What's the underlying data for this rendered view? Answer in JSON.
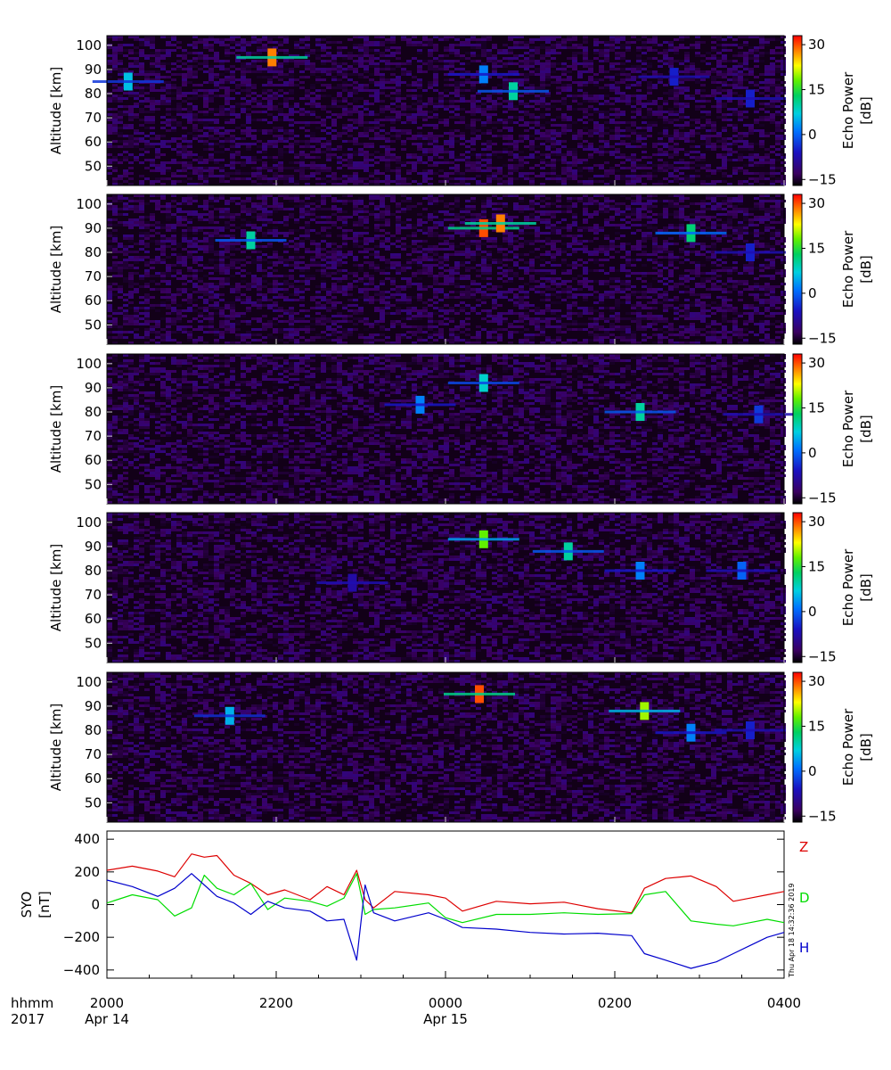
{
  "chart_data": [
    {
      "type": "heatmap",
      "panel": 1,
      "ylabel": "Altitude [km]",
      "ylim": [
        42,
        104
      ],
      "yticks": [
        "50",
        "60",
        "70",
        "80",
        "90",
        "100"
      ],
      "colorbar": {
        "label": "Echo Power\n[dB]",
        "range": [
          -17,
          33
        ],
        "ticks": [
          "30",
          "15",
          "0",
          "-15"
        ]
      },
      "features": [
        {
          "t": 0.25,
          "alt": 85,
          "db": 6
        },
        {
          "t": 1.95,
          "alt": 95,
          "db": 28
        },
        {
          "t": 4.45,
          "alt": 88,
          "db": 2
        },
        {
          "t": 4.8,
          "alt": 81,
          "db": 10
        },
        {
          "t": 6.7,
          "alt": 87,
          "db": -5
        },
        {
          "t": 7.6,
          "alt": 78,
          "db": -5
        }
      ]
    },
    {
      "type": "heatmap",
      "panel": 2,
      "ylabel": "Altitude [km]",
      "ylim": [
        42,
        104
      ],
      "yticks": [
        "50",
        "60",
        "70",
        "80",
        "90",
        "100"
      ],
      "colorbar": {
        "label": "Echo Power\n[dB]",
        "range": [
          -17,
          33
        ],
        "ticks": [
          "30",
          "15",
          "0",
          "-15"
        ]
      },
      "features": [
        {
          "t": 1.7,
          "alt": 85,
          "db": 10
        },
        {
          "t": 4.45,
          "alt": 90,
          "db": 30
        },
        {
          "t": 4.65,
          "alt": 92,
          "db": 28
        },
        {
          "t": 6.9,
          "alt": 88,
          "db": 12
        },
        {
          "t": 7.6,
          "alt": 80,
          "db": -5
        }
      ]
    },
    {
      "type": "heatmap",
      "panel": 3,
      "ylabel": "Altitude [km]",
      "ylim": [
        42,
        104
      ],
      "yticks": [
        "50",
        "60",
        "70",
        "80",
        "90",
        "100"
      ],
      "colorbar": {
        "label": "Echo Power\n[dB]",
        "range": [
          -17,
          33
        ],
        "ticks": [
          "30",
          "15",
          "0",
          "-15"
        ]
      },
      "features": [
        {
          "t": 3.7,
          "alt": 83,
          "db": 2
        },
        {
          "t": 4.45,
          "alt": 92,
          "db": 8
        },
        {
          "t": 6.3,
          "alt": 80,
          "db": 10
        },
        {
          "t": 7.7,
          "alt": 79,
          "db": -3
        }
      ]
    },
    {
      "type": "heatmap",
      "panel": 4,
      "ylabel": "Altitude [km]",
      "ylim": [
        42,
        104
      ],
      "yticks": [
        "50",
        "60",
        "70",
        "80",
        "90",
        "100"
      ],
      "colorbar": {
        "label": "Echo Power\n[dB]",
        "range": [
          -17,
          33
        ],
        "ticks": [
          "30",
          "15",
          "0",
          "-15"
        ]
      },
      "features": [
        {
          "t": 2.9,
          "alt": 75,
          "db": -8
        },
        {
          "t": 4.45,
          "alt": 93,
          "db": 18
        },
        {
          "t": 5.45,
          "alt": 88,
          "db": 10
        },
        {
          "t": 6.3,
          "alt": 80,
          "db": 2
        },
        {
          "t": 7.5,
          "alt": 80,
          "db": 0
        }
      ]
    },
    {
      "type": "heatmap",
      "panel": 5,
      "ylabel": "Altitude [km]",
      "ylim": [
        42,
        104
      ],
      "yticks": [
        "50",
        "60",
        "70",
        "80",
        "90",
        "100"
      ],
      "colorbar": {
        "label": "Echo Power\n[dB]",
        "range": [
          -17,
          33
        ],
        "ticks": [
          "30",
          "15",
          "0",
          "-15"
        ]
      },
      "features": [
        {
          "t": 1.45,
          "alt": 86,
          "db": 5
        },
        {
          "t": 4.4,
          "alt": 95,
          "db": 30
        },
        {
          "t": 6.35,
          "alt": 88,
          "db": 20
        },
        {
          "t": 6.9,
          "alt": 79,
          "db": 2
        },
        {
          "t": 7.6,
          "alt": 80,
          "db": -5
        }
      ]
    },
    {
      "type": "line",
      "ylabel": "SYO\n[nT]",
      "ylim": [
        -450,
        450
      ],
      "yticks": [
        "400",
        "200",
        "0",
        "-200",
        "-400"
      ],
      "x_range_hours": [
        0,
        8
      ],
      "series": [
        {
          "name": "Z",
          "color": "#dd0000",
          "x": [
            0,
            0.3,
            0.6,
            0.8,
            1.0,
            1.15,
            1.3,
            1.5,
            1.7,
            1.9,
            2.1,
            2.4,
            2.6,
            2.8,
            2.95,
            3.05,
            3.15,
            3.4,
            3.8,
            4.0,
            4.2,
            4.6,
            5.0,
            5.4,
            5.8,
            6.2,
            6.35,
            6.6,
            6.9,
            7.2,
            7.4,
            7.6,
            7.8,
            8.0
          ],
          "y": [
            210,
            235,
            205,
            170,
            310,
            290,
            300,
            180,
            130,
            60,
            90,
            30,
            110,
            60,
            210,
            30,
            -20,
            80,
            60,
            40,
            -40,
            20,
            5,
            15,
            -25,
            -50,
            100,
            160,
            175,
            110,
            20,
            40,
            60,
            80
          ]
        },
        {
          "name": "D",
          "color": "#00dd00",
          "x": [
            0,
            0.3,
            0.6,
            0.8,
            1.0,
            1.15,
            1.3,
            1.5,
            1.7,
            1.9,
            2.1,
            2.4,
            2.6,
            2.8,
            2.95,
            3.05,
            3.15,
            3.4,
            3.8,
            4.0,
            4.2,
            4.6,
            5.0,
            5.4,
            5.8,
            6.2,
            6.35,
            6.6,
            6.9,
            7.2,
            7.4,
            7.6,
            7.8,
            8.0
          ],
          "y": [
            10,
            60,
            30,
            -70,
            -20,
            180,
            100,
            60,
            130,
            -30,
            40,
            20,
            -10,
            40,
            190,
            -60,
            -30,
            -20,
            10,
            -80,
            -110,
            -60,
            -60,
            -50,
            -60,
            -55,
            60,
            80,
            -100,
            -120,
            -130,
            -110,
            -90,
            -110
          ]
        },
        {
          "name": "H",
          "color": "#0000cc",
          "x": [
            0,
            0.3,
            0.6,
            0.8,
            1.0,
            1.15,
            1.3,
            1.5,
            1.7,
            1.9,
            2.1,
            2.4,
            2.6,
            2.8,
            2.95,
            3.05,
            3.15,
            3.4,
            3.8,
            4.0,
            4.2,
            4.6,
            5.0,
            5.4,
            5.8,
            6.2,
            6.35,
            6.6,
            6.9,
            7.2,
            7.4,
            7.6,
            7.8,
            8.0
          ],
          "y": [
            150,
            110,
            50,
            100,
            190,
            120,
            50,
            10,
            -60,
            20,
            -20,
            -40,
            -100,
            -90,
            -340,
            120,
            -50,
            -100,
            -50,
            -90,
            -140,
            -150,
            -170,
            -180,
            -175,
            -190,
            -300,
            -340,
            -390,
            -350,
            -300,
            -250,
            -200,
            -170
          ]
        }
      ]
    }
  ],
  "x_axis": {
    "row_labels": [
      "hhmm",
      "2017"
    ],
    "ticks": [
      {
        "hour": 0,
        "time": "2000",
        "date": "Apr 14"
      },
      {
        "hour": 2,
        "time": "2200",
        "date": ""
      },
      {
        "hour": 4,
        "time": "0000",
        "date": "Apr 15"
      },
      {
        "hour": 6,
        "time": "0200",
        "date": ""
      },
      {
        "hour": 8,
        "time": "0400",
        "date": ""
      }
    ]
  },
  "timestamp": "Thu Apr 18 14:32:36 2019"
}
